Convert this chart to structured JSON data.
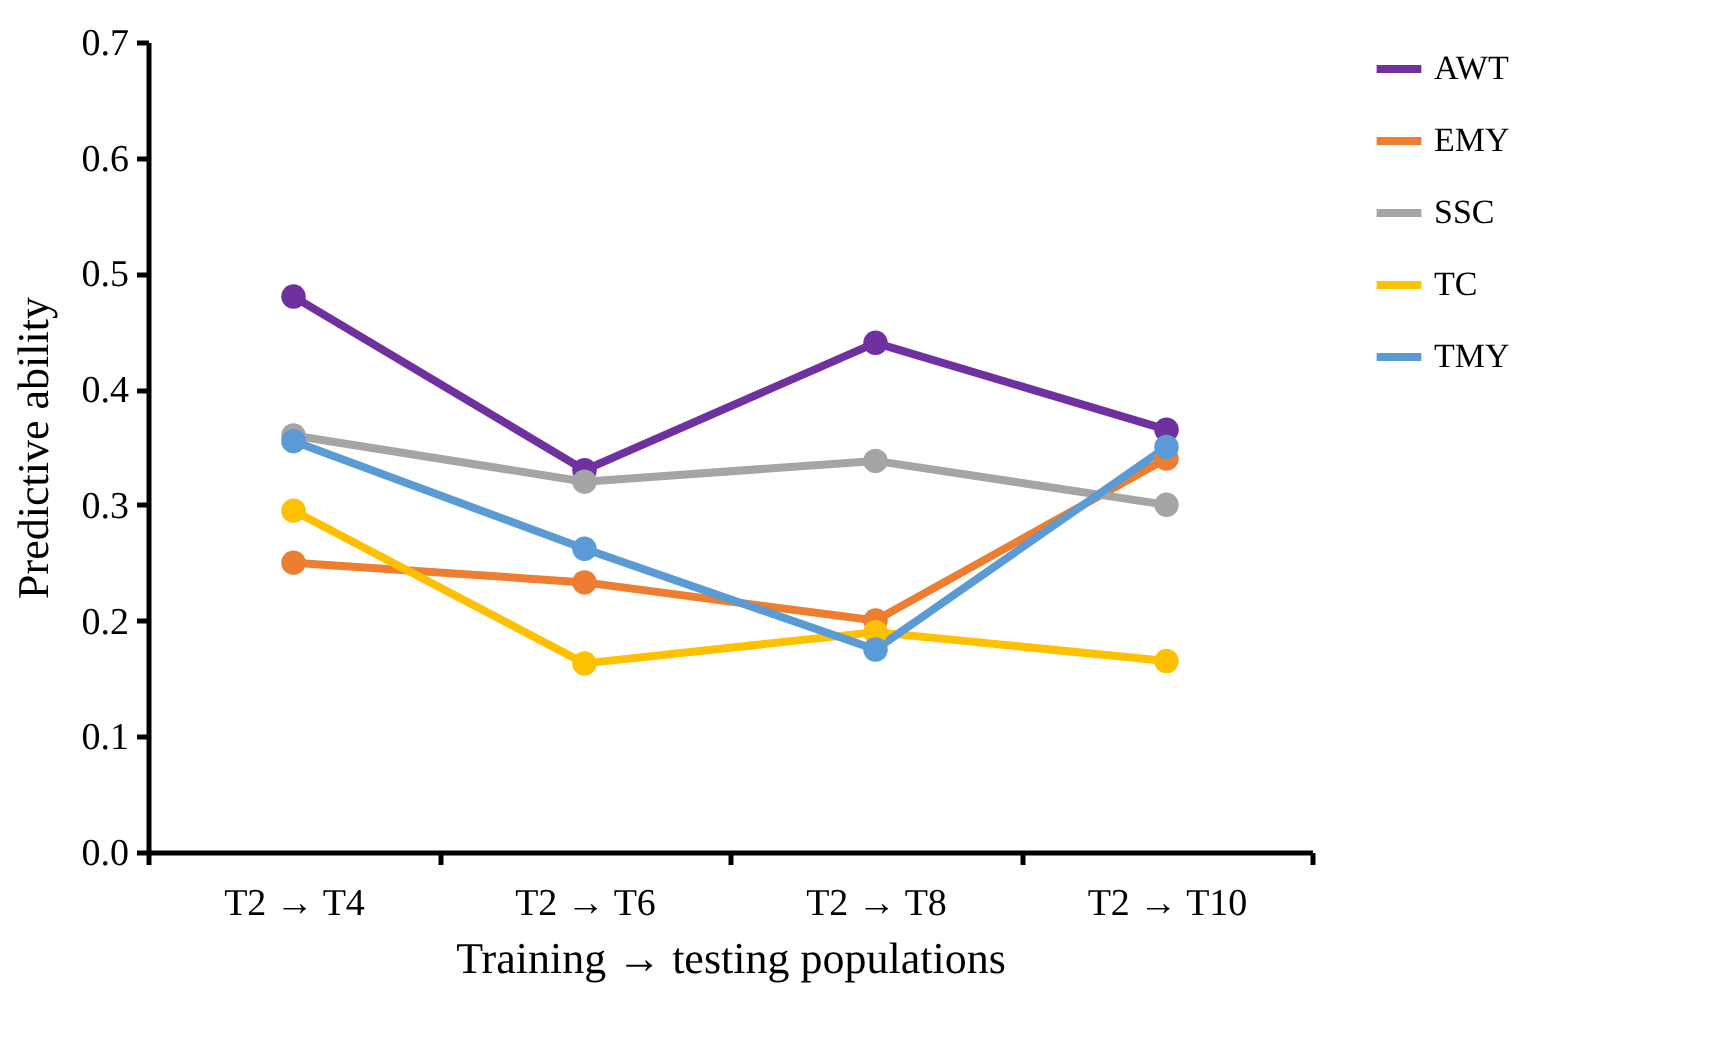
{
  "chart_data": {
    "type": "line",
    "xlabel": "Training → testing populations",
    "ylabel": "Predictive ability",
    "categories": [
      "T2 → T4",
      "T2 → T6",
      "T2 → T8",
      "T2 → T10"
    ],
    "series": [
      {
        "name": "AWT",
        "color": "#7030a0",
        "values": [
          0.48,
          0.33,
          0.44,
          0.365
        ]
      },
      {
        "name": "EMY",
        "color": "#ed7d31",
        "values": [
          0.25,
          0.233,
          0.2,
          0.34
        ]
      },
      {
        "name": "SSC",
        "color": "#a5a5a5",
        "values": [
          0.36,
          0.32,
          0.338,
          0.3
        ]
      },
      {
        "name": "TC",
        "color": "#ffc000",
        "values": [
          0.295,
          0.163,
          0.19,
          0.165
        ]
      },
      {
        "name": "TMY",
        "color": "#5b9bd5",
        "values": [
          0.355,
          0.262,
          0.175,
          0.35
        ]
      }
    ],
    "ylim": [
      0,
      0.7
    ],
    "yticks": [
      {
        "value": 0,
        "label": "0.0"
      },
      0.1,
      0.2,
      0.3,
      0.4,
      0.5,
      0.6,
      0.7
    ],
    "grid": false,
    "legend": "right",
    "marker": "circle",
    "line_style": "solid"
  }
}
